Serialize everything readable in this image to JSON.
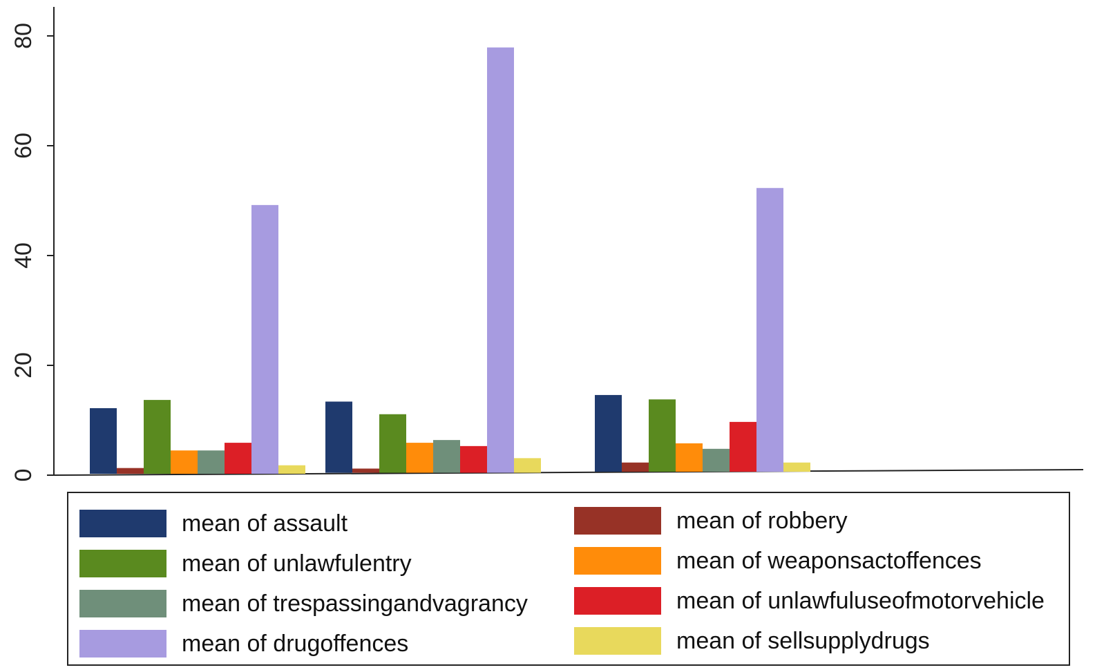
{
  "chart_data": {
    "type": "bar",
    "groups": 3,
    "ylim": [
      0,
      80
    ],
    "yticks": [
      "0",
      "20",
      "40",
      "60",
      "80"
    ],
    "grid": false,
    "legend_position": "bottom",
    "series": [
      {
        "name": "mean of assault",
        "color": "#1f3a6e",
        "values": [
          12.2,
          13.4,
          14.6
        ]
      },
      {
        "name": "mean of robbery",
        "color": "#973226",
        "values": [
          1.3,
          1.2,
          2.3
        ]
      },
      {
        "name": "mean of unlawfulentry",
        "color": "#5a8a1f",
        "values": [
          13.7,
          11.1,
          13.8
        ]
      },
      {
        "name": "mean of weaponsactoffences",
        "color": "#ff8c0a",
        "values": [
          4.5,
          5.9,
          5.8
        ]
      },
      {
        "name": "mean of trespassingandvagrancy",
        "color": "#6f8f7a",
        "values": [
          4.5,
          6.4,
          4.8
        ]
      },
      {
        "name": "mean of unlawfuluseofmotorvehicle",
        "color": "#dc1f26",
        "values": [
          5.9,
          5.3,
          9.7
        ]
      },
      {
        "name": "mean of drugoffences",
        "color": "#a79be0",
        "values": [
          49.2,
          77.9,
          52.3
        ]
      },
      {
        "name": "mean of sellsupplydrugs",
        "color": "#e8d95c",
        "values": [
          1.8,
          3.1,
          2.3
        ]
      }
    ]
  }
}
